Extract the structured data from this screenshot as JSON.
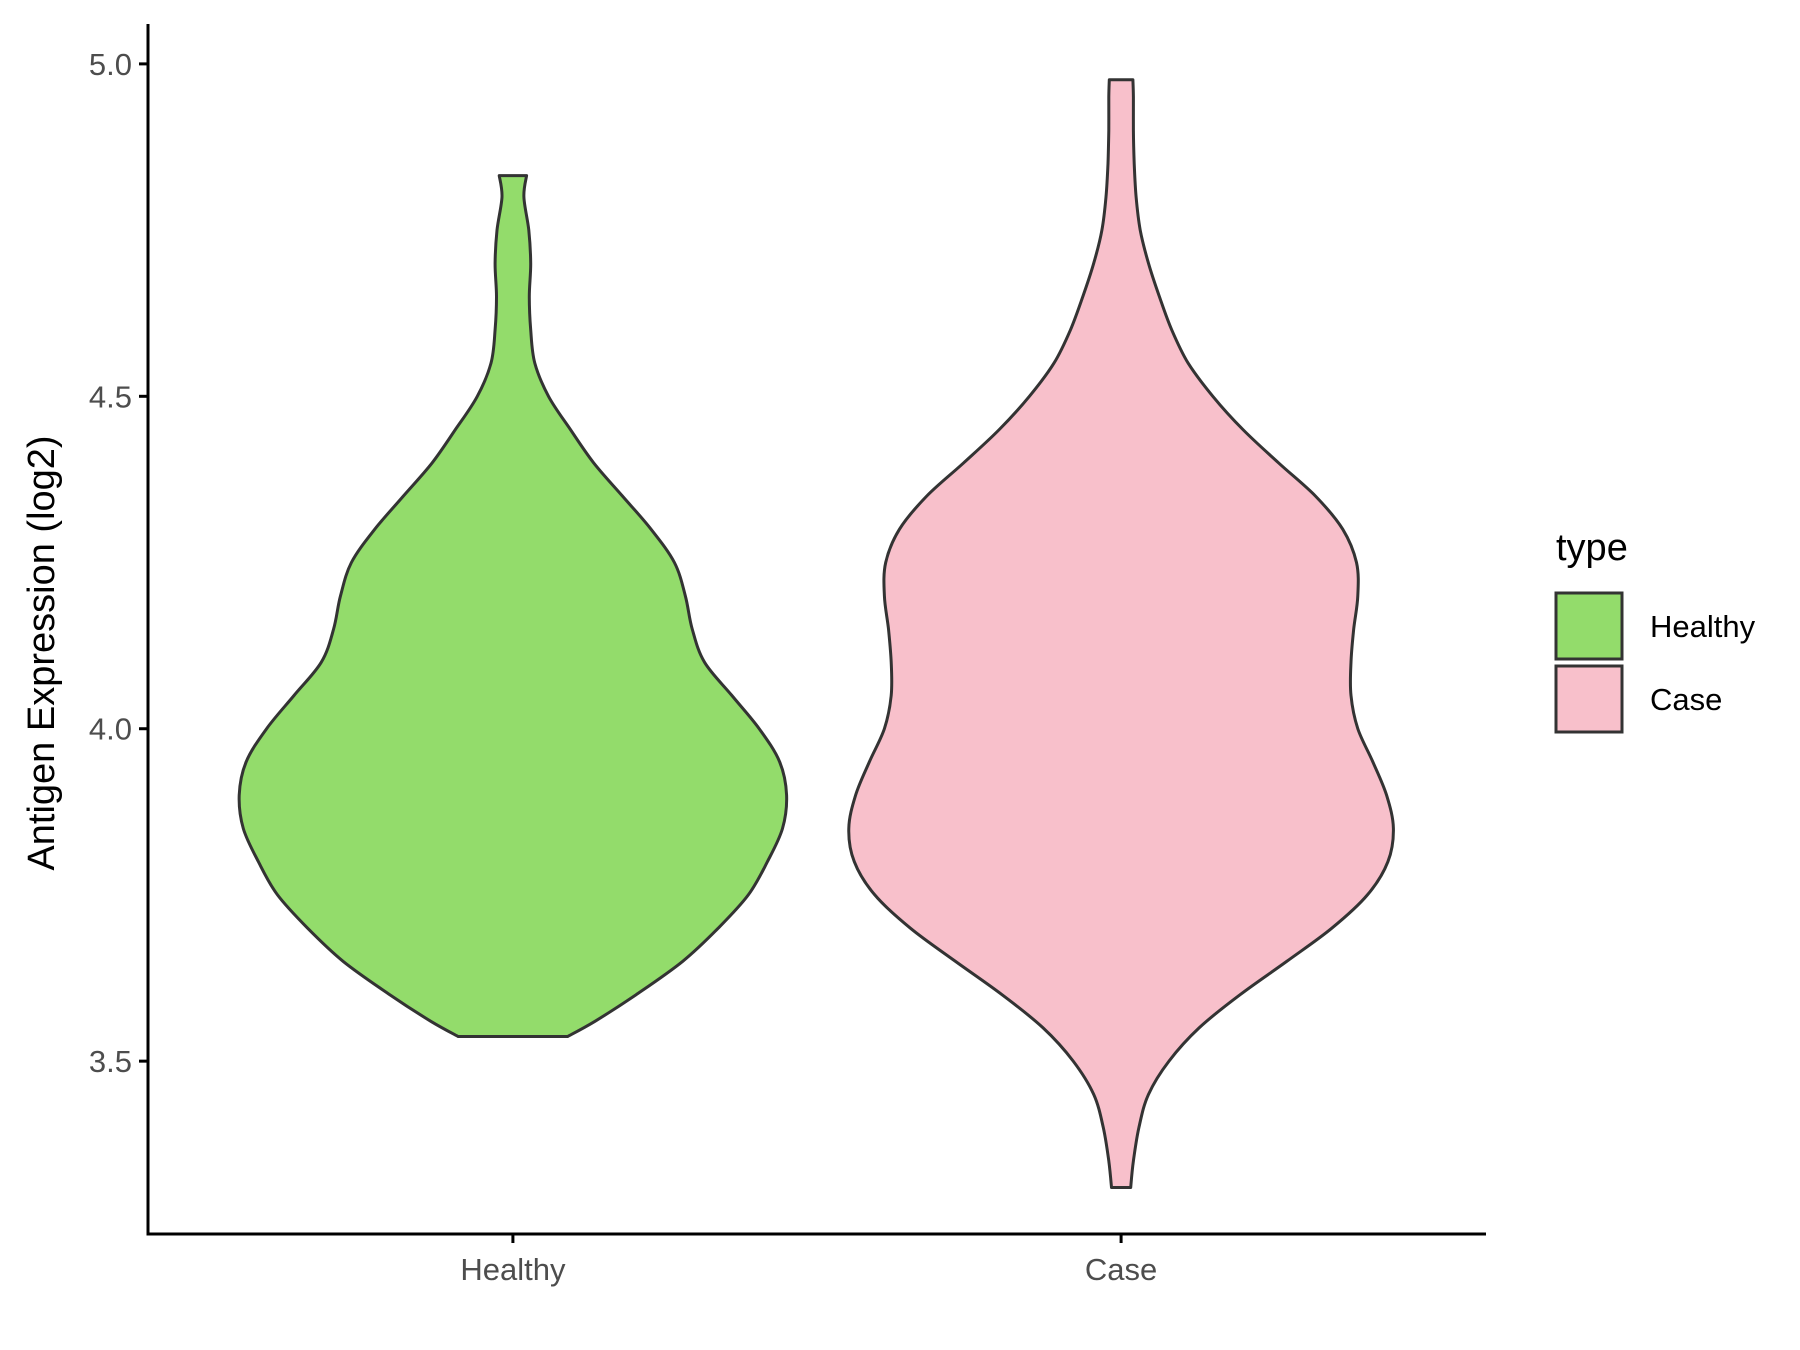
{
  "chart_data": {
    "type": "violin",
    "categories": [
      "Healthy",
      "Case"
    ],
    "ylabel": "Antigen Expression (log2)",
    "xlabel": "",
    "ylim": [
      3.24,
      5.06
    ],
    "yticks": [
      3.5,
      4.0,
      4.5,
      5.0
    ],
    "ytick_labels": [
      "3.5",
      "4.0",
      "4.5",
      "5.0"
    ],
    "grid": false,
    "legend": {
      "title": "type",
      "position": "right",
      "entries": [
        {
          "label": "Healthy",
          "color": "#93dc6b"
        },
        {
          "label": "Case",
          "color": "#f8c0cb"
        }
      ]
    },
    "outline_color": "#333333",
    "series": [
      {
        "category": "Healthy",
        "color": "#93dc6b",
        "density": [
          [
            3.537,
            0.2
          ],
          [
            3.56,
            0.3
          ],
          [
            3.6,
            0.45
          ],
          [
            3.65,
            0.62
          ],
          [
            3.7,
            0.75
          ],
          [
            3.75,
            0.86
          ],
          [
            3.8,
            0.93
          ],
          [
            3.85,
            0.985
          ],
          [
            3.9,
            1.0
          ],
          [
            3.95,
            0.975
          ],
          [
            4.0,
            0.9
          ],
          [
            4.05,
            0.8
          ],
          [
            4.1,
            0.7
          ],
          [
            4.15,
            0.655
          ],
          [
            4.2,
            0.63
          ],
          [
            4.25,
            0.59
          ],
          [
            4.3,
            0.505
          ],
          [
            4.35,
            0.4
          ],
          [
            4.4,
            0.295
          ],
          [
            4.45,
            0.21
          ],
          [
            4.5,
            0.13
          ],
          [
            4.55,
            0.08
          ],
          [
            4.6,
            0.065
          ],
          [
            4.65,
            0.06
          ],
          [
            4.7,
            0.065
          ],
          [
            4.75,
            0.058
          ],
          [
            4.8,
            0.04
          ],
          [
            4.832,
            0.05
          ]
        ]
      },
      {
        "category": "Case",
        "color": "#f8c0cb",
        "density": [
          [
            3.31,
            0.035
          ],
          [
            3.35,
            0.045
          ],
          [
            3.4,
            0.065
          ],
          [
            3.45,
            0.1
          ],
          [
            3.5,
            0.175
          ],
          [
            3.55,
            0.285
          ],
          [
            3.6,
            0.435
          ],
          [
            3.65,
            0.605
          ],
          [
            3.7,
            0.77
          ],
          [
            3.75,
            0.9
          ],
          [
            3.8,
            0.975
          ],
          [
            3.85,
            0.995
          ],
          [
            3.9,
            0.97
          ],
          [
            3.95,
            0.92
          ],
          [
            4.0,
            0.865
          ],
          [
            4.05,
            0.84
          ],
          [
            4.1,
            0.84
          ],
          [
            4.15,
            0.85
          ],
          [
            4.2,
            0.865
          ],
          [
            4.25,
            0.86
          ],
          [
            4.3,
            0.81
          ],
          [
            4.35,
            0.71
          ],
          [
            4.4,
            0.575
          ],
          [
            4.45,
            0.445
          ],
          [
            4.5,
            0.335
          ],
          [
            4.55,
            0.245
          ],
          [
            4.6,
            0.185
          ],
          [
            4.65,
            0.14
          ],
          [
            4.7,
            0.1
          ],
          [
            4.75,
            0.07
          ],
          [
            4.8,
            0.055
          ],
          [
            4.85,
            0.048
          ],
          [
            4.9,
            0.045
          ],
          [
            4.95,
            0.045
          ],
          [
            4.976,
            0.043
          ]
        ]
      }
    ]
  }
}
